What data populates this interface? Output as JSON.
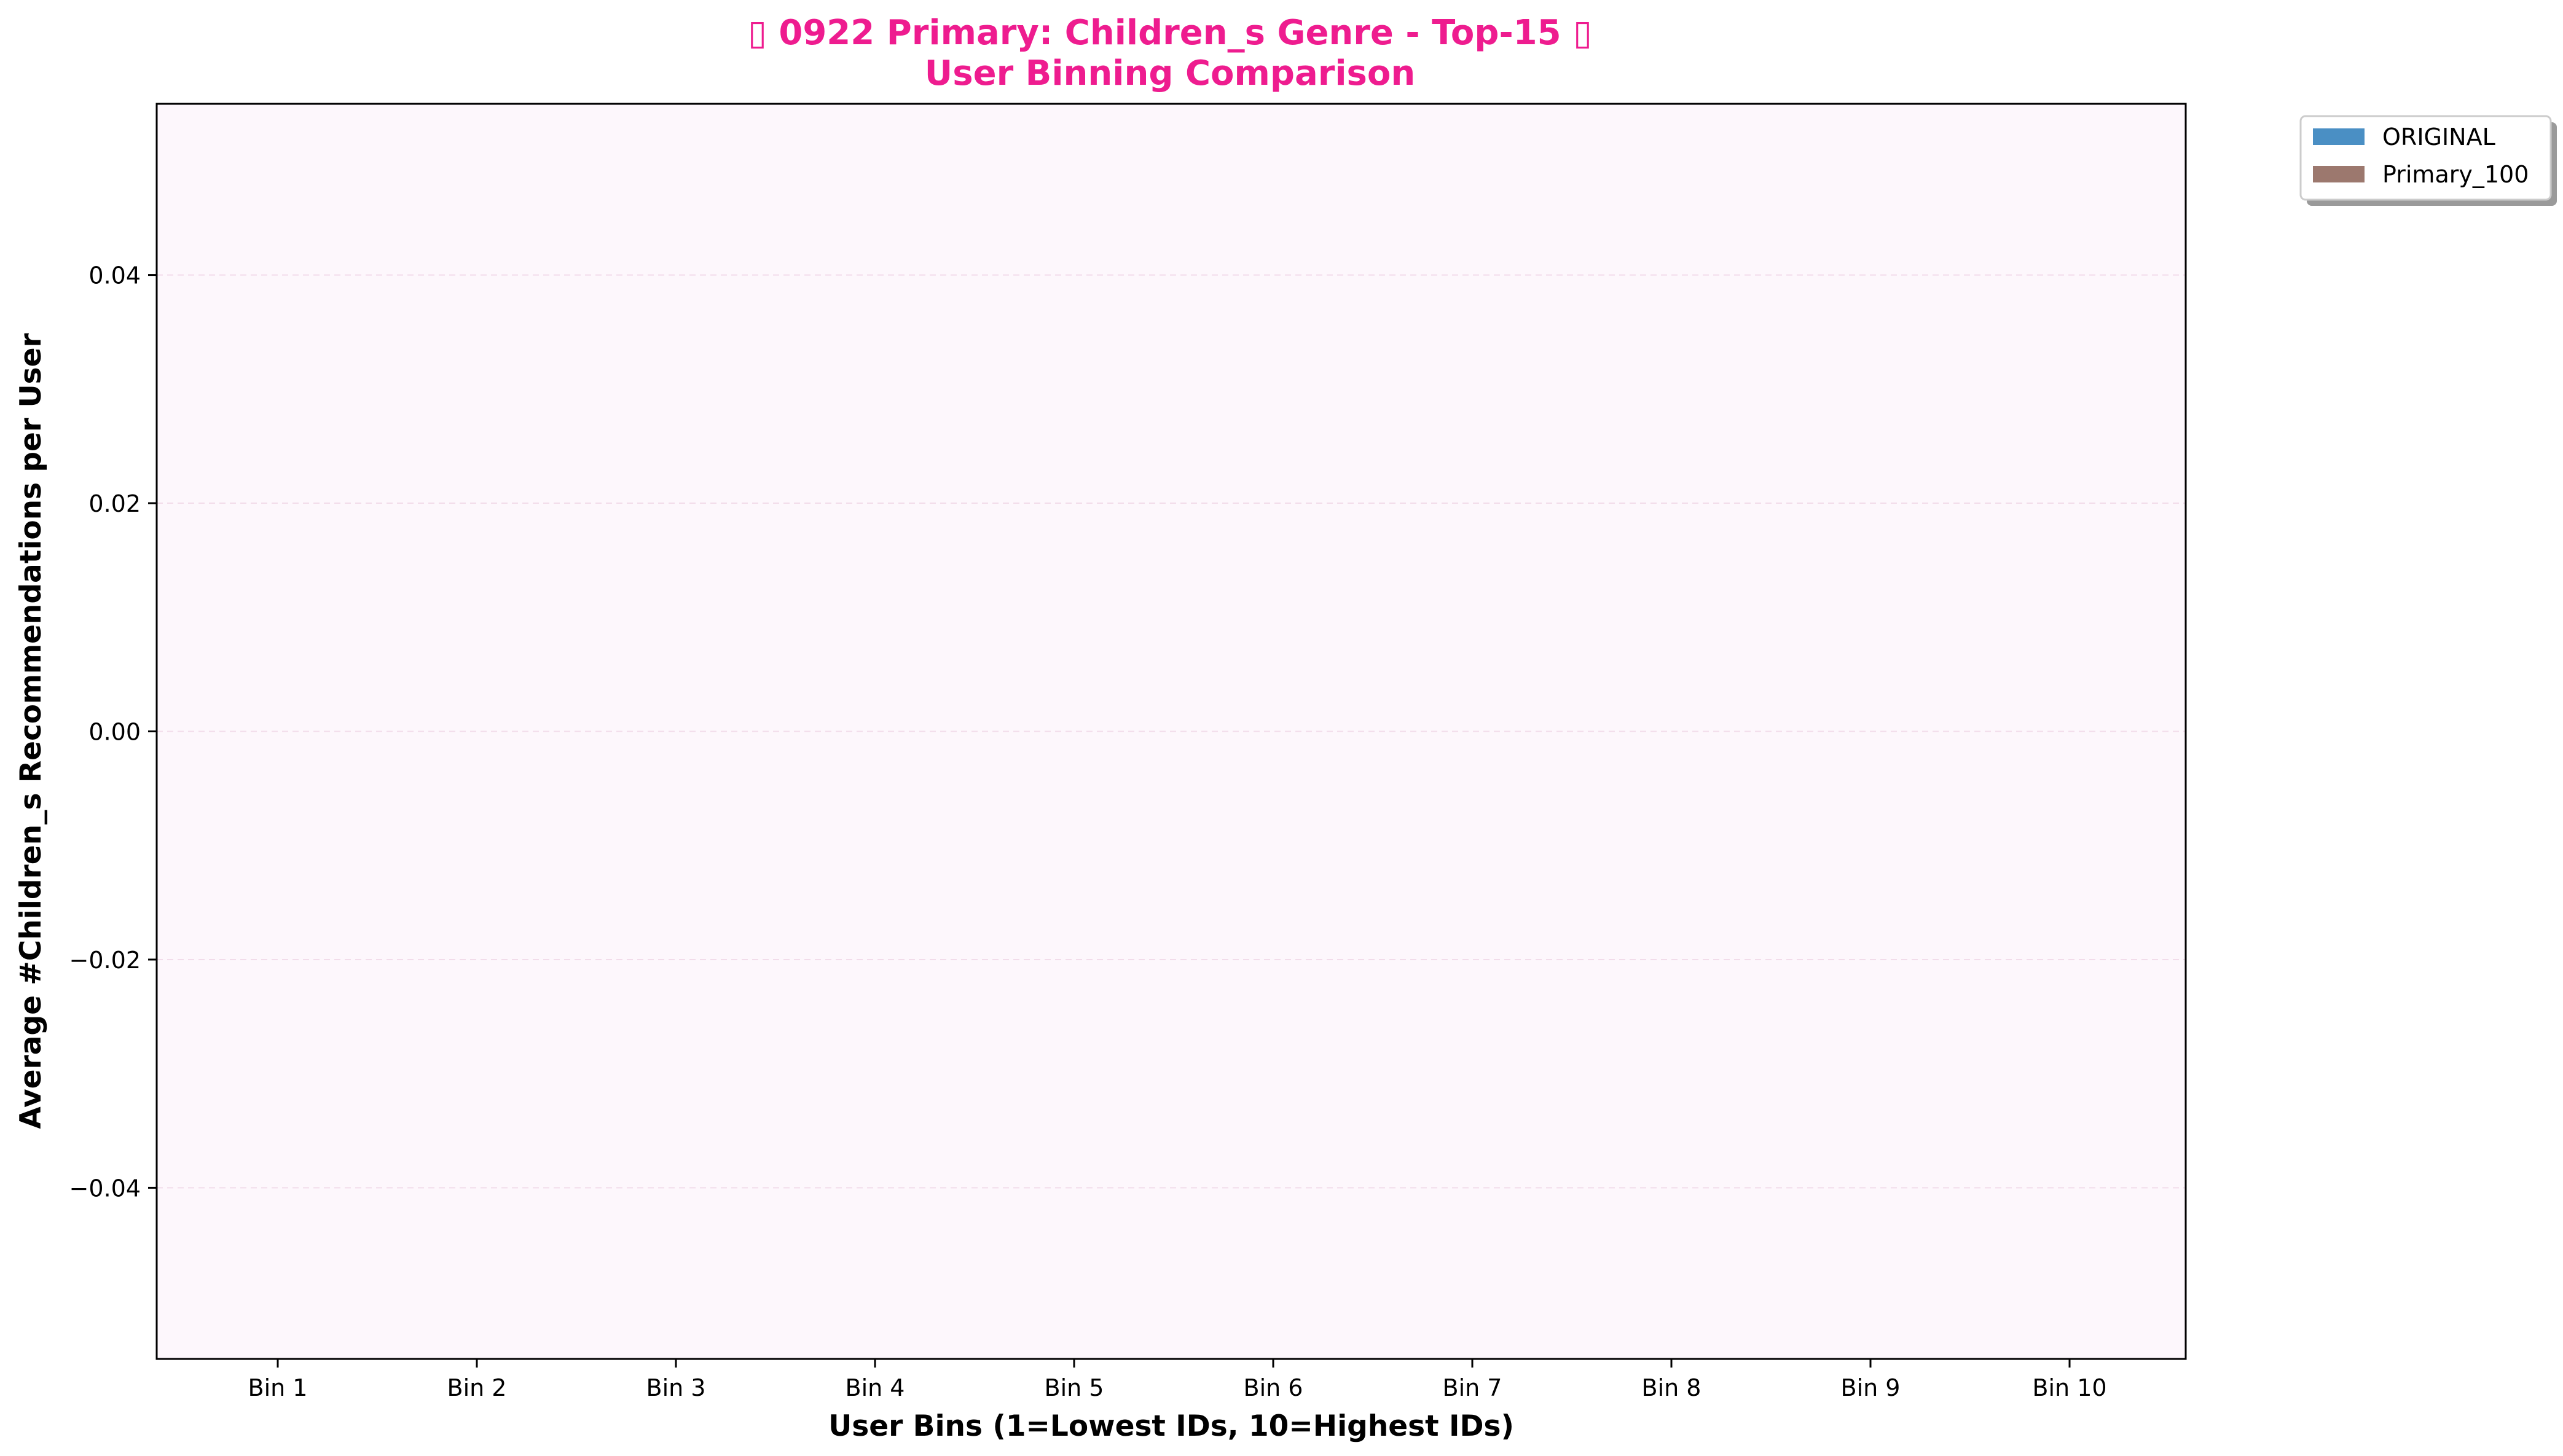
{
  "chart_data": {
    "type": "bar",
    "title_line1": "▯ 0922 Primary: Children_s Genre - Top-15 ▯",
    "title_line2": "User Binning Comparison",
    "xlabel": "User Bins (1=Lowest IDs, 10=Highest IDs)",
    "ylabel": "Average #Children_s Recommendations per User",
    "categories": [
      "Bin 1",
      "Bin 2",
      "Bin 3",
      "Bin 4",
      "Bin 5",
      "Bin 6",
      "Bin 7",
      "Bin 8",
      "Bin 9",
      "Bin 10"
    ],
    "series": [
      {
        "name": "ORIGINAL",
        "color": "#4a8fc4",
        "values": [
          0,
          0,
          0,
          0,
          0,
          0,
          0,
          0,
          0,
          0
        ]
      },
      {
        "name": "Primary_100",
        "color": "#9c786e",
        "values": [
          0,
          0,
          0,
          0,
          0,
          0,
          0,
          0,
          0,
          0
        ]
      }
    ],
    "ylim": [
      -0.055,
      0.055
    ],
    "yticks": [
      0.04,
      0.02,
      0.0,
      -0.02,
      -0.04
    ],
    "ytick_labels": [
      "0.04",
      "0.02",
      "0.00",
      "−0.02",
      "−0.04"
    ],
    "grid": "horizontal dashed",
    "legend_position": "outside-top-right",
    "title_color": "#ee1c8f",
    "plot_background": "#fdf7fc"
  }
}
